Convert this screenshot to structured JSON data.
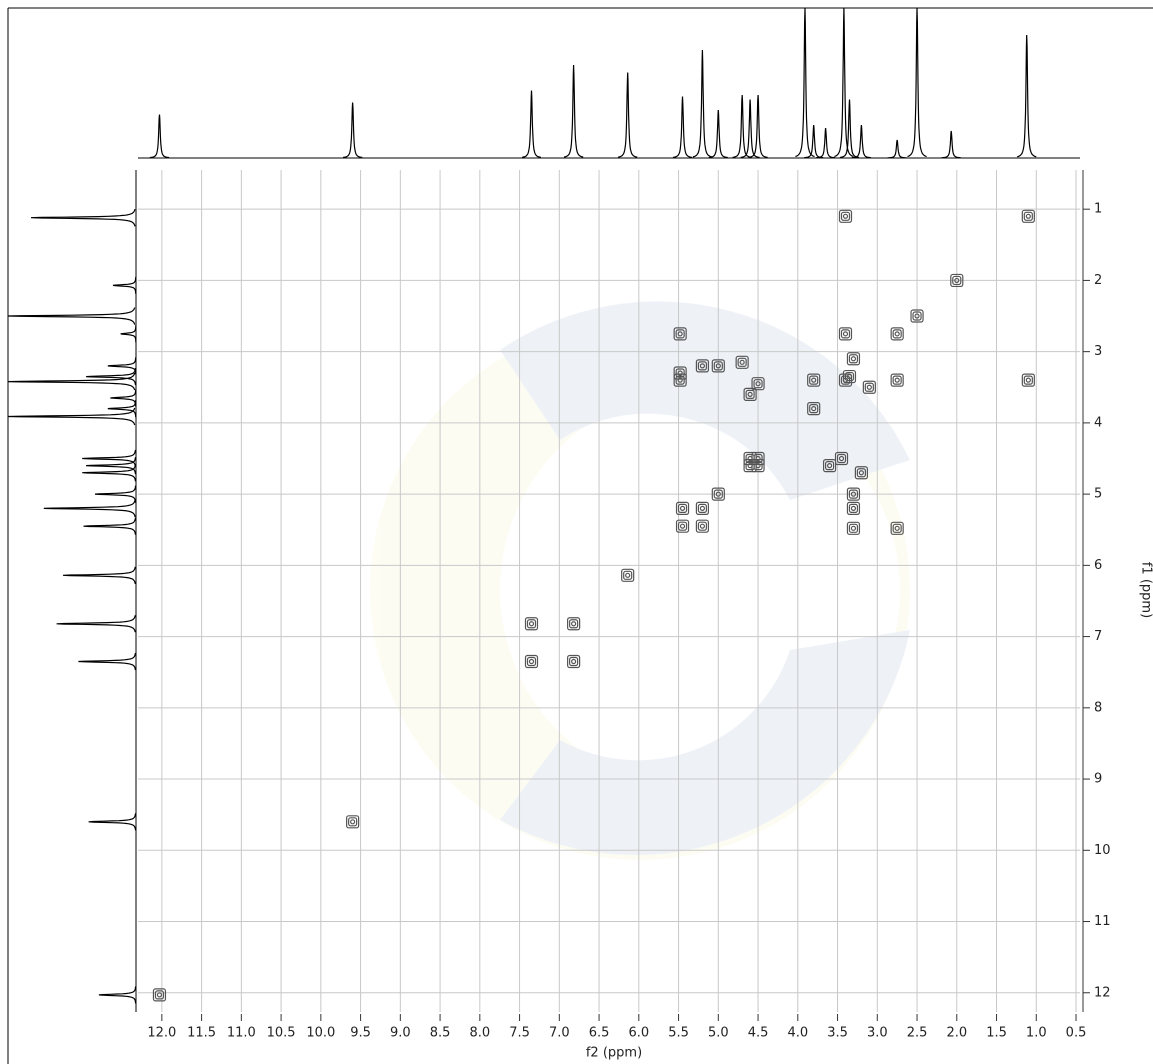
{
  "chart_data": {
    "type": "nmr-2d",
    "x_label": "f2 (ppm)",
    "y_label": "f1 (ppm)",
    "xlim": [
      12.3,
      0.45
    ],
    "ylim": [
      0.45,
      12.27
    ],
    "grid": true,
    "xticks": [
      {
        "value": 12,
        "label": "12.0"
      },
      11.5,
      {
        "value": 11,
        "label": "11.0"
      },
      10.5,
      {
        "value": 10,
        "label": "10.0"
      },
      9.5,
      {
        "value": 9,
        "label": "9.0"
      },
      8.5,
      {
        "value": 8,
        "label": "8.0"
      },
      7.5,
      {
        "value": 7,
        "label": "7.0"
      },
      6.5,
      {
        "value": 6,
        "label": "6.0"
      },
      5.5,
      {
        "value": 5,
        "label": "5.0"
      },
      4.5,
      {
        "value": 4,
        "label": "4.0"
      },
      3.5,
      {
        "value": 3,
        "label": "3.0"
      },
      2.5,
      {
        "value": 2,
        "label": "2.0"
      },
      1.5,
      {
        "value": 1,
        "label": "1.0"
      },
      0.5
    ],
    "yticks": [
      1,
      2,
      3,
      4,
      5,
      6,
      7,
      8,
      9,
      10,
      11,
      12
    ],
    "color": "#555555",
    "x": [
      12.03,
      9.6,
      7.35,
      6.82,
      6.14,
      5.45,
      5.2,
      5.0,
      4.6,
      4.5,
      3.8,
      3.4,
      3.35,
      2.75,
      2.5,
      1.1,
      2.0,
      7.35,
      6.82,
      5.48,
      5.48,
      5.48,
      5.2,
      5.0,
      4.7,
      4.5,
      4.6,
      3.4,
      1.1,
      3.4,
      2.75,
      2.75,
      3.3,
      3.3,
      3.3,
      3.2,
      3.45,
      3.6,
      3.8,
      3.3,
      3.1,
      4.6,
      4.5,
      5.45,
      5.2
    ],
    "values": [
      12.03,
      9.6,
      7.35,
      6.82,
      6.14,
      5.45,
      5.2,
      5.0,
      4.6,
      4.5,
      3.8,
      3.4,
      3.35,
      2.75,
      2.5,
      1.1,
      2.0,
      6.82,
      7.35,
      2.75,
      3.3,
      3.4,
      3.2,
      3.2,
      3.15,
      3.45,
      3.6,
      1.1,
      3.4,
      2.75,
      3.4,
      5.48,
      5.48,
      5.2,
      5.0,
      4.7,
      4.5,
      4.6,
      3.4,
      3.1,
      3.5,
      4.5,
      4.6,
      5.2,
      5.45
    ],
    "projection": {
      "color": "#000000",
      "x": [
        12.03,
        9.6,
        7.35,
        6.82,
        6.14,
        5.45,
        5.2,
        5.0,
        4.7,
        4.6,
        4.5,
        3.91,
        3.8,
        3.65,
        3.42,
        3.35,
        3.2,
        2.75,
        2.5,
        2.07,
        1.12
      ],
      "values": [
        29,
        37,
        45,
        62,
        57,
        41,
        72,
        32,
        42,
        39,
        42,
        100,
        22,
        20,
        100,
        39,
        22,
        12,
        100,
        18,
        82
      ]
    }
  }
}
